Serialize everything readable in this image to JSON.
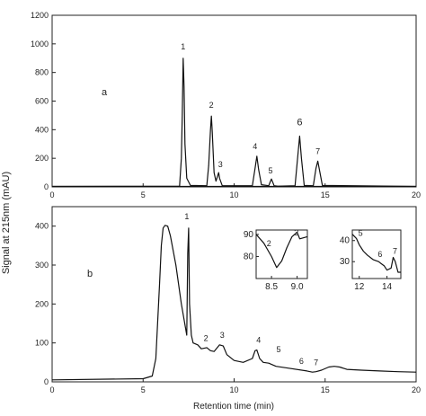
{
  "figure": {
    "ylabel": "Signal at 215nm (mAU)",
    "xlabel": "Retention time (min)"
  },
  "chart_data": [
    {
      "type": "line",
      "panel_label": "a",
      "xlim": [
        0,
        20
      ],
      "ylim": [
        0,
        1200
      ],
      "xticks": [
        0,
        5,
        10,
        15,
        20
      ],
      "yticks": [
        0,
        200,
        400,
        600,
        800,
        1000,
        1200
      ],
      "baseline": 3,
      "x": [
        0,
        7.0,
        7.1,
        7.15,
        7.2,
        7.25,
        7.3,
        7.4,
        7.6,
        8.5,
        8.6,
        8.7,
        8.75,
        8.8,
        8.9,
        9.0,
        9.1,
        9.15,
        9.2,
        9.35,
        11.0,
        11.15,
        11.25,
        11.35,
        11.5,
        11.9,
        12.0,
        12.05,
        12.1,
        12.2,
        12.4,
        13.35,
        13.5,
        13.6,
        13.7,
        13.85,
        14.35,
        14.5,
        14.6,
        14.7,
        14.85,
        20
      ],
      "y": [
        3,
        5,
        200,
        500,
        900,
        700,
        300,
        60,
        10,
        8,
        150,
        400,
        495,
        380,
        100,
        40,
        80,
        100,
        60,
        8,
        8,
        130,
        215,
        120,
        15,
        8,
        40,
        55,
        40,
        8,
        5,
        8,
        220,
        355,
        200,
        10,
        8,
        130,
        180,
        110,
        10,
        3
      ],
      "peaks": [
        {
          "label": "1",
          "x": 7.2,
          "y": 900
        },
        {
          "label": "2",
          "x": 8.75,
          "y": 495
        },
        {
          "label": "3",
          "x": 9.15,
          "y": 100
        },
        {
          "label": "4",
          "x": 11.25,
          "y": 215
        },
        {
          "label": "5",
          "x": 12.05,
          "y": 55
        },
        {
          "label": "6",
          "x": 13.6,
          "y": 355
        },
        {
          "label": "7",
          "x": 14.6,
          "y": 180
        }
      ]
    },
    {
      "type": "line",
      "panel_label": "b",
      "xlim": [
        0,
        20
      ],
      "ylim": [
        0,
        450
      ],
      "xticks": [
        0,
        5,
        10,
        15,
        20
      ],
      "yticks": [
        0,
        100,
        200,
        300,
        400
      ],
      "x": [
        0,
        5.0,
        5.5,
        5.7,
        5.9,
        6.0,
        6.1,
        6.2,
        6.35,
        6.5,
        6.8,
        7.1,
        7.4,
        7.45,
        7.5,
        7.55,
        7.65,
        7.75,
        8.0,
        8.2,
        8.5,
        8.7,
        8.9,
        9.2,
        9.4,
        9.6,
        10.0,
        10.5,
        11.0,
        11.15,
        11.25,
        11.4,
        11.6,
        11.9,
        12.3,
        13.0,
        14.0,
        14.3,
        14.5,
        14.8,
        15.2,
        15.5,
        15.8,
        16.2,
        17.0,
        18.0,
        19.0,
        20.0
      ],
      "y": [
        5,
        8,
        15,
        60,
        250,
        350,
        395,
        402,
        400,
        375,
        300,
        200,
        120,
        330,
        395,
        200,
        120,
        100,
        95,
        85,
        88,
        80,
        78,
        95,
        92,
        70,
        55,
        50,
        60,
        80,
        82,
        60,
        50,
        48,
        40,
        35,
        28,
        25,
        26,
        30,
        38,
        40,
        38,
        32,
        30,
        28,
        26,
        25
      ],
      "peaks": [
        {
          "label": "1",
          "x": 7.5,
          "y": 395
        },
        {
          "label": "2",
          "x": 8.6,
          "y": 86
        },
        {
          "label": "3",
          "x": 9.2,
          "y": 95
        },
        {
          "label": "4",
          "x": 11.25,
          "y": 82
        },
        {
          "label": "5",
          "x": 11.9,
          "y": 48
        },
        {
          "label": "6",
          "x": 13.7,
          "y": 30
        },
        {
          "label": "7",
          "x": 14.4,
          "y": 26
        }
      ],
      "insets": [
        {
          "xlim": [
            8.2,
            9.2
          ],
          "ylim": [
            70,
            92
          ],
          "xticks": [
            8.5,
            9.0
          ],
          "xticklabels": [
            "8.5",
            "9.0"
          ],
          "yticks": [
            70,
            80,
            90
          ],
          "yticklabels": [
            "",
            "80",
            "90"
          ],
          "x": [
            8.2,
            8.35,
            8.5,
            8.6,
            8.7,
            8.8,
            8.9,
            9.0,
            9.05,
            9.2
          ],
          "y": [
            90,
            86,
            80,
            75,
            78,
            84,
            89,
            91,
            88,
            89
          ],
          "peaks": [
            {
              "label": "2",
              "x": 8.45,
              "y": 83
            },
            {
              "label": "3",
              "x": 8.95,
              "y": 88
            }
          ]
        },
        {
          "xlim": [
            11.5,
            15.0
          ],
          "ylim": [
            22,
            45
          ],
          "xticks": [
            12,
            14
          ],
          "xticklabels": [
            "12",
            "14"
          ],
          "yticks": [
            30,
            40
          ],
          "yticklabels": [
            "30",
            "40"
          ],
          "x": [
            11.5,
            11.8,
            12.0,
            12.3,
            12.6,
            13.0,
            13.4,
            13.6,
            13.8,
            14.0,
            14.3,
            14.45,
            14.6,
            14.8,
            15.0
          ],
          "y": [
            43,
            41,
            38,
            35,
            33,
            31,
            30,
            29,
            28,
            26,
            27,
            32,
            30,
            25,
            25
          ],
          "peaks": [
            {
              "label": "5",
              "x": 11.9,
              "y": 41
            },
            {
              "label": "6",
              "x": 13.5,
              "y": 30
            },
            {
              "label": "7",
              "x": 14.45,
              "y": 32
            }
          ]
        }
      ]
    }
  ]
}
